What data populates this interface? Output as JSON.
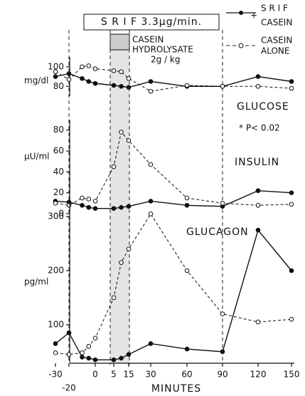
{
  "chart_data": [
    {
      "type": "line",
      "title": "GLUCOSE",
      "ylabel": "mg/dl",
      "annotations": [
        "S R I F  3.3µg/min.",
        "CASEIN",
        "HYDROLYSATE",
        "2g / kg"
      ],
      "legend": [
        "S R I F",
        "+",
        "CASEIN",
        "CASEIN",
        "ALONE"
      ],
      "x": [
        -30,
        -20,
        -10,
        -5,
        0,
        5,
        10,
        15,
        30,
        60,
        90,
        120,
        150
      ],
      "ylim": [
        70,
        110
      ],
      "yticks": [
        80,
        100
      ],
      "series": [
        {
          "name": "SRIF + CASEIN",
          "color": "#111",
          "values": [
            90,
            93,
            88,
            85,
            83,
            81,
            80,
            79,
            85,
            80,
            80,
            90,
            85
          ]
        },
        {
          "name": "CASEIN ALONE",
          "color": "#111",
          "values": [
            95,
            87,
            100,
            101,
            98,
            96,
            95,
            88,
            75,
            81,
            80,
            80,
            78
          ]
        }
      ]
    },
    {
      "type": "line",
      "title": "INSULIN",
      "ylabel": "µU/ml",
      "note": "*    P< 0.02",
      "x": [
        -30,
        -20,
        -10,
        -5,
        0,
        5,
        10,
        15,
        30,
        60,
        90,
        120,
        150
      ],
      "ylim": [
        0,
        90
      ],
      "yticks": [
        0,
        20,
        40,
        60,
        80
      ],
      "series": [
        {
          "name": "SRIF + CASEIN",
          "color": "#111",
          "values": [
            12,
            11,
            8,
            6,
            5,
            5,
            6,
            7,
            12,
            8,
            7,
            22,
            20
          ]
        },
        {
          "name": "CASEIN ALONE",
          "color": "#111",
          "values": [
            10,
            8,
            15,
            14,
            12,
            45,
            78,
            70,
            47,
            15,
            10,
            8,
            9
          ]
        }
      ]
    },
    {
      "type": "line",
      "title": "GLUCAGON",
      "ylabel": "pg/ml",
      "xlabel": "MINUTES",
      "x": [
        -30,
        -20,
        -10,
        -5,
        0,
        5,
        10,
        15,
        30,
        60,
        90,
        120,
        150
      ],
      "xticks": [
        -30,
        -20,
        0,
        5,
        15,
        30,
        60,
        90,
        120,
        150
      ],
      "ylim": [
        30,
        370
      ],
      "yticks": [
        100,
        200,
        300
      ],
      "series": [
        {
          "name": "SRIF + CASEIN",
          "color": "#111",
          "values": [
            65,
            85,
            40,
            38,
            35,
            35,
            38,
            45,
            65,
            55,
            50,
            275,
            200
          ]
        },
        {
          "name": "CASEIN ALONE",
          "color": "#111",
          "values": [
            48,
            45,
            48,
            60,
            75,
            150,
            215,
            240,
            305,
            200,
            120,
            105,
            110
          ]
        }
      ]
    }
  ]
}
